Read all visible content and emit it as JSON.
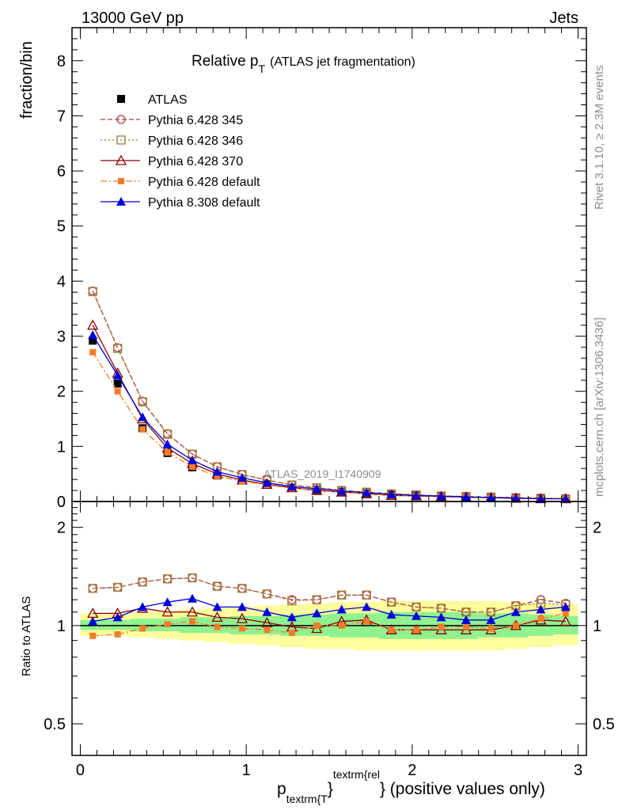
{
  "header": {
    "left": "13000 GeV pp",
    "right": "Jets"
  },
  "side_labels": {
    "rivet": "Rivet 3.1.10, ≥ 2.3M events",
    "mcplots": "mcplots.cern.ch [arXiv:1306.3436]"
  },
  "watermark": "ATLAS_2019_I1740909",
  "chart_data": [
    {
      "type": "line",
      "panel": "main",
      "title": "Relative p_T (ATLAS jet fragmentation)",
      "title_main": "Relative p",
      "title_sub": "T",
      "title_rest": "(ATLAS jet fragmentation)",
      "ylabel": "fraction/bin",
      "ylim": [
        0,
        8.6
      ],
      "xlim": [
        -0.05,
        3.05
      ],
      "yticks": [
        0,
        1,
        2,
        3,
        4,
        5,
        6,
        7,
        8
      ],
      "x": [
        0.075,
        0.225,
        0.375,
        0.525,
        0.675,
        0.825,
        0.975,
        1.125,
        1.275,
        1.425,
        1.575,
        1.725,
        1.875,
        2.025,
        2.175,
        2.325,
        2.475,
        2.625,
        2.775,
        2.925
      ],
      "series": [
        {
          "name": "ATLAS",
          "color": "#000000",
          "marker": "square-filled",
          "dash": "none",
          "values": [
            2.92,
            2.14,
            1.33,
            0.88,
            0.62,
            0.47,
            0.38,
            0.31,
            0.25,
            0.21,
            0.17,
            0.14,
            0.12,
            0.1,
            0.09,
            0.08,
            0.07,
            0.06,
            0.05,
            0.05
          ]
        },
        {
          "name": "Pythia 6.428 345",
          "color": "#b03a3a",
          "marker": "circle-open",
          "dash": "6,3",
          "values": [
            3.82,
            2.79,
            1.82,
            1.23,
            0.86,
            0.63,
            0.49,
            0.39,
            0.3,
            0.25,
            0.2,
            0.17,
            0.14,
            0.12,
            0.1,
            0.09,
            0.08,
            0.07,
            0.06,
            0.05
          ]
        },
        {
          "name": "Pythia 6.428 346",
          "color": "#a07a3a",
          "marker": "square-open",
          "dash": "2,3",
          "values": [
            3.81,
            2.78,
            1.81,
            1.22,
            0.86,
            0.63,
            0.49,
            0.39,
            0.3,
            0.25,
            0.2,
            0.17,
            0.14,
            0.12,
            0.1,
            0.09,
            0.08,
            0.07,
            0.06,
            0.05
          ]
        },
        {
          "name": "Pythia 6.428 370",
          "color": "#8b0000",
          "marker": "triangle-open",
          "dash": "none",
          "values": [
            3.2,
            2.33,
            1.5,
            0.97,
            0.69,
            0.5,
            0.39,
            0.31,
            0.25,
            0.2,
            0.17,
            0.14,
            0.11,
            0.1,
            0.09,
            0.08,
            0.07,
            0.06,
            0.05,
            0.05
          ]
        },
        {
          "name": "Pythia 6.428 default",
          "color": "#f57c2a",
          "marker": "square-filled-small",
          "dash": "8,3,2,3",
          "values": [
            2.71,
            2.0,
            1.31,
            0.89,
            0.63,
            0.46,
            0.37,
            0.3,
            0.24,
            0.21,
            0.17,
            0.14,
            0.11,
            0.1,
            0.09,
            0.08,
            0.07,
            0.06,
            0.05,
            0.05
          ]
        },
        {
          "name": "Pythia 8.308 default",
          "color": "#0000d8",
          "marker": "triangle-filled",
          "dash": "none",
          "values": [
            3.02,
            2.29,
            1.53,
            1.04,
            0.75,
            0.54,
            0.43,
            0.34,
            0.27,
            0.23,
            0.19,
            0.16,
            0.13,
            0.11,
            0.1,
            0.08,
            0.07,
            0.06,
            0.05,
            0.05
          ]
        }
      ]
    },
    {
      "type": "line",
      "panel": "ratio",
      "ylabel": "Ratio to ATLAS",
      "xlabel": "p_textrm{T}^textrm{rel} (positive values only)",
      "xlabel_p": "p",
      "xlabel_sub": "textrm{T",
      "xlabel_sup": "textrm{rel",
      "xlabel_brace1": "}",
      "xlabel_rest": "} (positive values only)",
      "ylim": [
        0.4,
        2.4
      ],
      "log_y": true,
      "xlim": [
        -0.05,
        3.05
      ],
      "yticks": [
        0.5,
        1,
        2
      ],
      "yticklabels": [
        "0.5",
        "1",
        "2"
      ],
      "xticks": [
        0,
        1,
        2,
        3
      ],
      "xticklabels": [
        "0",
        "1",
        "2",
        "3"
      ],
      "x": [
        0.075,
        0.225,
        0.375,
        0.525,
        0.675,
        0.825,
        0.975,
        1.125,
        1.275,
        1.425,
        1.575,
        1.725,
        1.875,
        2.025,
        2.175,
        2.325,
        2.475,
        2.625,
        2.775,
        2.925
      ],
      "bands": {
        "x_edges": [
          0.0,
          0.15,
          0.3,
          0.45,
          0.6,
          0.75,
          0.9,
          1.05,
          1.2,
          1.35,
          1.5,
          1.65,
          1.8,
          1.95,
          2.1,
          2.25,
          2.4,
          2.55,
          2.7,
          2.85,
          3.0
        ],
        "yellow_lo": [
          0.93,
          0.93,
          0.92,
          0.91,
          0.9,
          0.89,
          0.88,
          0.87,
          0.86,
          0.85,
          0.85,
          0.84,
          0.84,
          0.84,
          0.84,
          0.84,
          0.84,
          0.85,
          0.86,
          0.87
        ],
        "yellow_hi": [
          1.09,
          1.09,
          1.1,
          1.11,
          1.12,
          1.13,
          1.14,
          1.15,
          1.16,
          1.17,
          1.18,
          1.18,
          1.19,
          1.19,
          1.19,
          1.19,
          1.19,
          1.18,
          1.17,
          1.16
        ],
        "green_lo": [
          0.97,
          0.97,
          0.96,
          0.96,
          0.95,
          0.95,
          0.94,
          0.94,
          0.93,
          0.93,
          0.92,
          0.92,
          0.91,
          0.91,
          0.91,
          0.91,
          0.92,
          0.92,
          0.93,
          0.94
        ],
        "green_hi": [
          1.04,
          1.04,
          1.05,
          1.05,
          1.06,
          1.06,
          1.07,
          1.07,
          1.08,
          1.08,
          1.09,
          1.09,
          1.1,
          1.1,
          1.1,
          1.1,
          1.09,
          1.09,
          1.08,
          1.07
        ]
      },
      "series": [
        {
          "name": "Pythia 6.428 345",
          "color": "#b03a3a",
          "marker": "circle-open",
          "dash": "6,3",
          "values": [
            1.3,
            1.31,
            1.36,
            1.39,
            1.4,
            1.32,
            1.3,
            1.25,
            1.2,
            1.2,
            1.24,
            1.24,
            1.18,
            1.14,
            1.13,
            1.1,
            1.1,
            1.15,
            1.2,
            1.17
          ]
        },
        {
          "name": "Pythia 6.428 346",
          "color": "#a07a3a",
          "marker": "square-open",
          "dash": "2,3",
          "values": [
            1.3,
            1.31,
            1.36,
            1.39,
            1.4,
            1.32,
            1.3,
            1.25,
            1.19,
            1.2,
            1.24,
            1.24,
            1.18,
            1.14,
            1.13,
            1.1,
            1.1,
            1.15,
            1.17,
            1.16
          ]
        },
        {
          "name": "Pythia 6.428 370",
          "color": "#8b0000",
          "marker": "triangle-open",
          "dash": "none",
          "values": [
            1.09,
            1.09,
            1.13,
            1.1,
            1.1,
            1.06,
            1.05,
            1.02,
            0.99,
            0.98,
            1.03,
            1.04,
            0.97,
            0.97,
            0.97,
            0.97,
            0.97,
            1.0,
            1.04,
            1.03
          ]
        },
        {
          "name": "Pythia 6.428 default",
          "color": "#f57c2a",
          "marker": "square-filled-small",
          "dash": "8,3,2,3",
          "values": [
            0.93,
            0.94,
            0.98,
            1.01,
            1.03,
            0.99,
            0.98,
            0.97,
            0.95,
            1.0,
            1.0,
            1.03,
            0.97,
            0.97,
            0.99,
            0.99,
            0.98,
            1.0,
            1.05,
            1.09
          ]
        },
        {
          "name": "Pythia 8.308 default",
          "color": "#0000d8",
          "marker": "triangle-filled",
          "dash": "none",
          "values": [
            1.03,
            1.06,
            1.14,
            1.18,
            1.21,
            1.14,
            1.14,
            1.1,
            1.06,
            1.09,
            1.12,
            1.14,
            1.08,
            1.07,
            1.06,
            1.04,
            1.04,
            1.1,
            1.12,
            1.14
          ]
        }
      ]
    }
  ]
}
